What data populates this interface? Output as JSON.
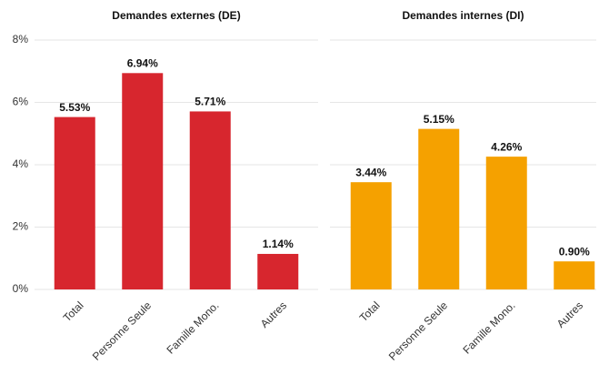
{
  "chart_data": [
    {
      "type": "bar",
      "title": "Demandes externes (DE)",
      "categories": [
        "Total",
        "Personne Seule",
        "Famille Mono.",
        "Autres"
      ],
      "values": [
        5.53,
        6.94,
        5.71,
        1.14
      ],
      "value_labels": [
        "5.53%",
        "6.94%",
        "5.71%",
        "1.14%"
      ],
      "color": "#d7262e",
      "ylim": [
        0,
        8
      ],
      "yticks": [
        {
          "value": 0,
          "label": "0%"
        },
        {
          "value": 2,
          "label": "2%"
        },
        {
          "value": 4,
          "label": "4%"
        },
        {
          "value": 6,
          "label": "6%"
        },
        {
          "value": 8,
          "label": "8%"
        }
      ],
      "grid": true
    },
    {
      "type": "bar",
      "title": "Demandes internes (DI)",
      "categories": [
        "Total",
        "Personne Seule",
        "Famille Mono.",
        "Autres"
      ],
      "values": [
        3.44,
        5.15,
        4.26,
        0.9
      ],
      "value_labels": [
        "3.44%",
        "5.15%",
        "4.26%",
        "0.90%"
      ],
      "color": "#f5a100",
      "sharey": true,
      "grid": true
    }
  ]
}
